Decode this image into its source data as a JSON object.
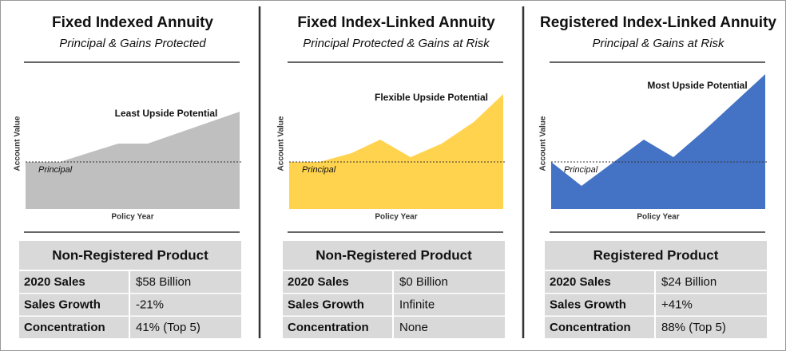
{
  "panels": [
    {
      "title": "Fixed Indexed Annuity",
      "subtitle": "Principal & Gains Protected",
      "annotation": "Least Upside Potential",
      "y_axis_label": "Account Value",
      "x_axis_label": "Policy Year",
      "principal_label": "Principal",
      "table": {
        "header": "Non-Registered Product",
        "rows": [
          [
            "2020 Sales",
            "$58 Billion"
          ],
          [
            "Sales Growth",
            "-21%"
          ],
          [
            "Concentration",
            "41% (Top 5)"
          ]
        ]
      }
    },
    {
      "title": "Fixed Index-Linked Annuity",
      "subtitle": "Principal Protected & Gains at Risk",
      "annotation": "Flexible Upside Potential",
      "y_axis_label": "Account Value",
      "x_axis_label": "Policy Year",
      "principal_label": "Principal",
      "table": {
        "header": "Non-Registered Product",
        "rows": [
          [
            "2020 Sales",
            "$0 Billion"
          ],
          [
            "Sales Growth",
            "Infinite"
          ],
          [
            "Concentration",
            "None"
          ]
        ]
      }
    },
    {
      "title": "Registered Index-Linked Annuity",
      "subtitle": "Principal & Gains at Risk",
      "annotation": "Most Upside Potential",
      "y_axis_label": "Account Value",
      "x_axis_label": "Policy Year",
      "principal_label": "Principal",
      "table": {
        "header": "Registered Product",
        "rows": [
          [
            "2020 Sales",
            "$24 Billion"
          ],
          [
            "Sales Growth",
            "+41%"
          ],
          [
            "Concentration",
            "88% (Top 5)"
          ]
        ]
      }
    }
  ]
}
